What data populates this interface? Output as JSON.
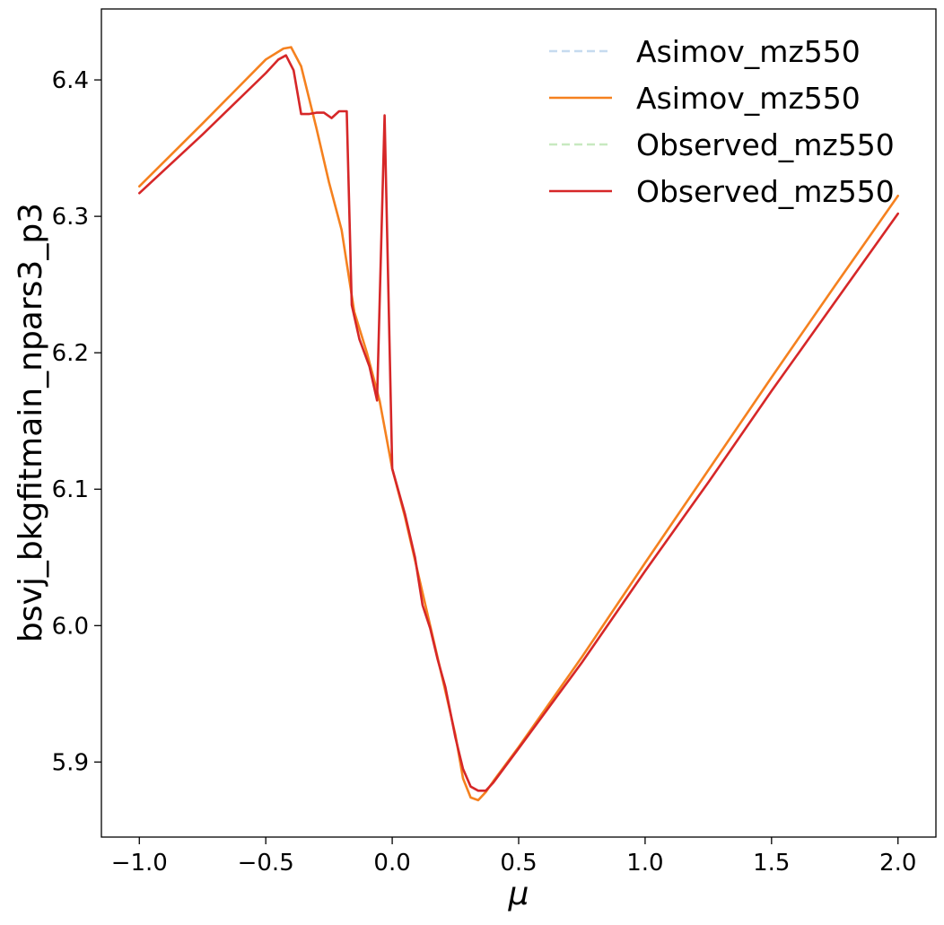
{
  "chart_data": {
    "type": "line",
    "xlabel": "μ",
    "ylabel": "bsvj_bkgfitmain_npars3_p3",
    "xlim": [
      -1.15,
      2.15
    ],
    "ylim": [
      5.845,
      6.452
    ],
    "xticks": [
      -1.0,
      -0.5,
      0.0,
      0.5,
      1.0,
      1.5,
      2.0
    ],
    "xtick_labels": [
      "−1.0",
      "−0.5",
      "0.0",
      "0.5",
      "1.0",
      "1.5",
      "2.0"
    ],
    "yticks": [
      5.9,
      6.0,
      6.1,
      6.2,
      6.3,
      6.4
    ],
    "ytick_labels": [
      "5.9",
      "6.0",
      "6.1",
      "6.2",
      "6.3",
      "6.4"
    ],
    "grid": false,
    "legend_position": "top-right",
    "series": [
      {
        "name": "Asimov_mz550",
        "color": "#c6dbef",
        "dash": "dashed",
        "x": [],
        "y": []
      },
      {
        "name": "Asimov_mz550",
        "color": "#f5811f",
        "dash": "solid",
        "x": [
          -1.0,
          -0.75,
          -0.5,
          -0.43,
          -0.4,
          -0.36,
          -0.3,
          -0.25,
          -0.2,
          -0.15,
          -0.1,
          -0.05,
          0.0,
          0.05,
          0.1,
          0.15,
          0.2,
          0.25,
          0.28,
          0.31,
          0.34,
          0.37,
          0.4,
          0.5,
          0.75,
          1.0,
          1.25,
          1.5,
          1.75,
          2.0
        ],
        "y": [
          6.322,
          6.368,
          6.415,
          6.423,
          6.424,
          6.41,
          6.365,
          6.325,
          6.29,
          6.23,
          6.2,
          6.165,
          6.115,
          6.08,
          6.04,
          6.0,
          5.96,
          5.92,
          5.888,
          5.874,
          5.872,
          5.878,
          5.886,
          5.911,
          5.977,
          6.046,
          6.114,
          6.182,
          6.249,
          6.315
        ]
      },
      {
        "name": "Observed_mz550",
        "color": "#c7e9c0",
        "dash": "dashed",
        "x": [],
        "y": []
      },
      {
        "name": "Observed_mz550",
        "color": "#d62728",
        "dash": "solid",
        "x": [
          -1.0,
          -0.75,
          -0.5,
          -0.45,
          -0.42,
          -0.39,
          -0.36,
          -0.33,
          -0.3,
          -0.27,
          -0.24,
          -0.21,
          -0.18,
          -0.16,
          -0.13,
          -0.09,
          -0.06,
          -0.03,
          0.0,
          0.05,
          0.09,
          0.12,
          0.15,
          0.18,
          0.21,
          0.25,
          0.28,
          0.31,
          0.34,
          0.37,
          0.4,
          0.5,
          0.75,
          1.0,
          1.25,
          1.5,
          1.75,
          2.0
        ],
        "y": [
          6.317,
          6.36,
          6.405,
          6.415,
          6.418,
          6.407,
          6.375,
          6.375,
          6.376,
          6.376,
          6.372,
          6.377,
          6.377,
          6.235,
          6.21,
          6.19,
          6.165,
          6.374,
          6.115,
          6.082,
          6.05,
          6.015,
          5.998,
          5.975,
          5.955,
          5.918,
          5.895,
          5.882,
          5.879,
          5.879,
          5.885,
          5.91,
          5.973,
          6.04,
          6.105,
          6.172,
          6.237,
          6.302
        ]
      }
    ]
  }
}
